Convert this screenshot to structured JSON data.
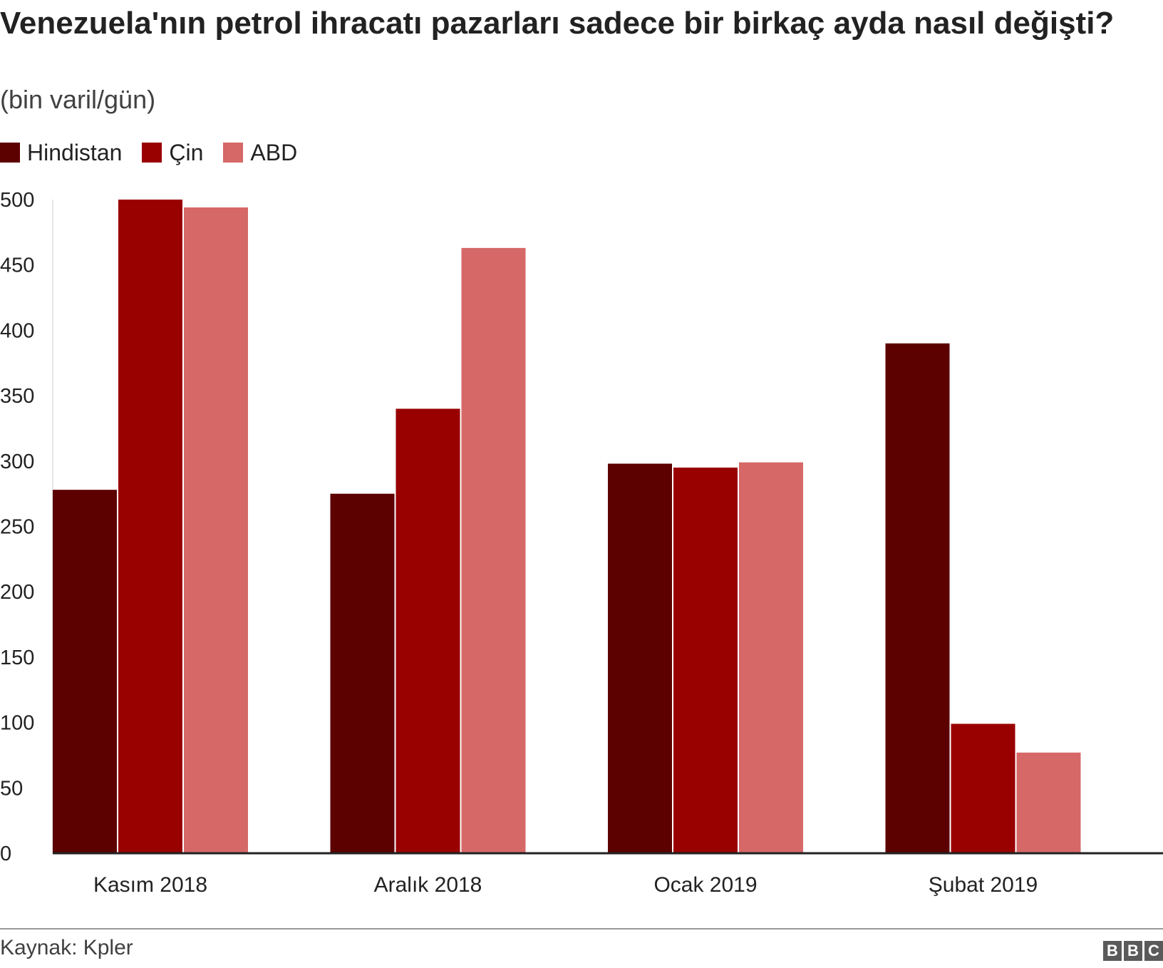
{
  "header": {
    "title": "Venezuela'nın petrol ihracatı pazarları sadece bir birkaç ayda nasıl değişti?",
    "subtitle": "(bin varil/gün)"
  },
  "footer": {
    "source": "Kaynak: Kpler",
    "logo_letters": [
      "B",
      "B",
      "C"
    ]
  },
  "colors": {
    "Hindistan": "#5c0000",
    "Çin": "#990000",
    "ABD": "#d66868",
    "axis": "#222222"
  },
  "chart_data": {
    "type": "bar",
    "title": "Venezuela'nın petrol ihracatı pazarları sadece bir birkaç ayda nasıl değişti?",
    "subtitle": "(bin varil/gün)",
    "categories": [
      "Kasım 2018",
      "Aralık 2018",
      "Ocak 2019",
      "Şubat 2019"
    ],
    "series": [
      {
        "name": "Hindistan",
        "values": [
          278,
          275,
          298,
          390
        ]
      },
      {
        "name": "Çin",
        "values": [
          500,
          340,
          295,
          99
        ]
      },
      {
        "name": "ABD",
        "values": [
          494,
          463,
          299,
          77
        ]
      }
    ],
    "ylim": [
      0,
      500
    ],
    "yticks": [
      0,
      50,
      100,
      150,
      200,
      250,
      300,
      350,
      400,
      450,
      500
    ],
    "xlabel": "",
    "ylabel": "",
    "legend": "top-left",
    "grid": false
  }
}
